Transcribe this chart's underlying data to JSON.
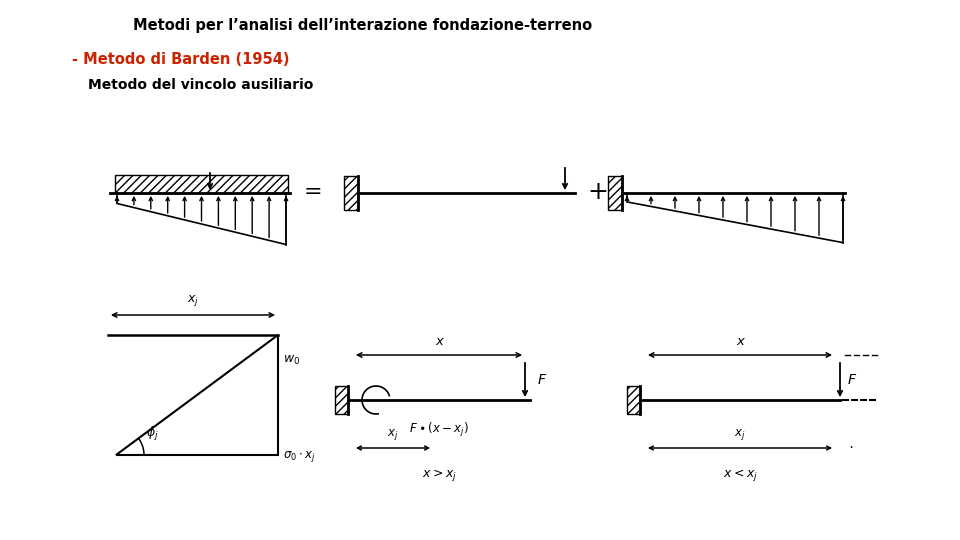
{
  "title": "Metodi per l’analisi dell’interazione fondazione-terreno",
  "subtitle_red": "- Metodo di Barden (1954)",
  "subtitle_black": "Metodo del vincolo ausiliario",
  "bg_color": "#ffffff",
  "title_color": "#000000",
  "subtitle_red_color": "#cc2200",
  "subtitle_black_color": "#000000",
  "dc": "#000000"
}
